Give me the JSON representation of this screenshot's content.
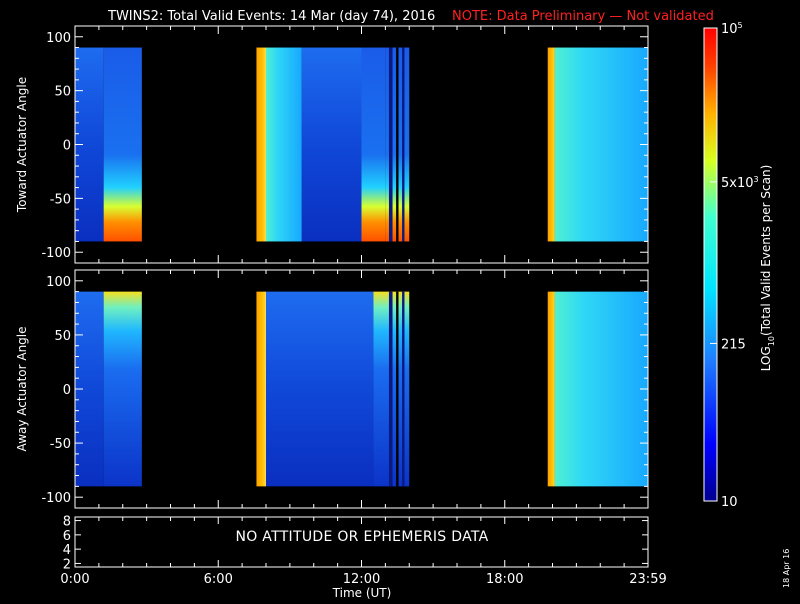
{
  "title": {
    "main": "TWINS2: Total Valid Events: 14 Mar (day  74), 2016",
    "note": "NOTE: Data Preliminary — Not validated",
    "note_color": "#ff2020"
  },
  "chart_data": [
    {
      "type": "heatmap",
      "panel": "top",
      "ylabel": "Toward Actuator Angle",
      "x_unit": "hours UT",
      "xlim": [
        0,
        24
      ],
      "ylim": [
        -110,
        110
      ],
      "y_ticks": [
        100,
        50,
        0,
        -50,
        -100
      ],
      "y_tick_labels": [
        "100",
        "50",
        "0",
        "-50",
        "-100"
      ],
      "data_range_y": [
        -90,
        90
      ],
      "data_intervals": [
        {
          "start": 0.0,
          "end": 1.2,
          "level": "low"
        },
        {
          "start": 1.2,
          "end": 2.8,
          "level": "enhanced_low_angles"
        },
        {
          "start": 7.6,
          "end": 8.0,
          "level": "high"
        },
        {
          "start": 8.0,
          "end": 9.5,
          "level": "moderate"
        },
        {
          "start": 9.5,
          "end": 12.0,
          "level": "low"
        },
        {
          "start": 12.0,
          "end": 13.0,
          "level": "low_with_high_low_angles"
        },
        {
          "start": 13.0,
          "end": 14.0,
          "level": "enhanced_low_angles"
        },
        {
          "start": 19.8,
          "end": 20.1,
          "level": "high"
        },
        {
          "start": 20.1,
          "end": 24.0,
          "level": "moderate"
        }
      ]
    },
    {
      "type": "heatmap",
      "panel": "middle",
      "ylabel": "Away Actuator Angle",
      "x_unit": "hours UT",
      "xlim": [
        0,
        24
      ],
      "ylim": [
        -110,
        110
      ],
      "y_ticks": [
        100,
        50,
        0,
        -50,
        -100
      ],
      "y_tick_labels": [
        "100",
        "50",
        "0",
        "-50",
        "-100"
      ],
      "data_range_y": [
        -90,
        90
      ],
      "data_intervals": [
        {
          "start": 0.0,
          "end": 1.2,
          "level": "low"
        },
        {
          "start": 1.2,
          "end": 2.8,
          "level": "enhanced_high_angles"
        },
        {
          "start": 7.6,
          "end": 8.0,
          "level": "high"
        },
        {
          "start": 8.0,
          "end": 12.5,
          "level": "low"
        },
        {
          "start": 12.5,
          "end": 14.0,
          "level": "enhanced_high_angles"
        },
        {
          "start": 19.8,
          "end": 20.1,
          "level": "high"
        },
        {
          "start": 20.1,
          "end": 24.0,
          "level": "moderate"
        }
      ]
    }
  ],
  "bottom_panel": {
    "message": "NO ATTITUDE OR EPHEMERIS DATA",
    "y_ticks": [
      8,
      6,
      4,
      2
    ],
    "y_tick_labels": [
      "8",
      "6",
      "4",
      "2"
    ],
    "ylim": [
      1.5,
      8.5
    ]
  },
  "x_axis": {
    "label": "Time (UT)",
    "ticks": [
      0,
      6,
      12,
      18,
      24
    ],
    "tick_labels": [
      "0:00",
      "6:00",
      "12:00",
      "18:00",
      "23:59"
    ],
    "minor_per_major": 6
  },
  "colorbar": {
    "label_prefix": "LOG",
    "label_sub": "10",
    "label_suffix": "(Total Valid Events per Scan)",
    "scale": "log",
    "range": [
      10,
      100000
    ],
    "ticks": [
      {
        "value": 10,
        "label": "10"
      },
      {
        "value": 215,
        "label": "215"
      },
      {
        "value": 5000,
        "base": "5x10",
        "exp": "3"
      },
      {
        "value": 100000,
        "base": "10",
        "exp": "5"
      }
    ]
  },
  "date_stamp": "18 Apr 16"
}
